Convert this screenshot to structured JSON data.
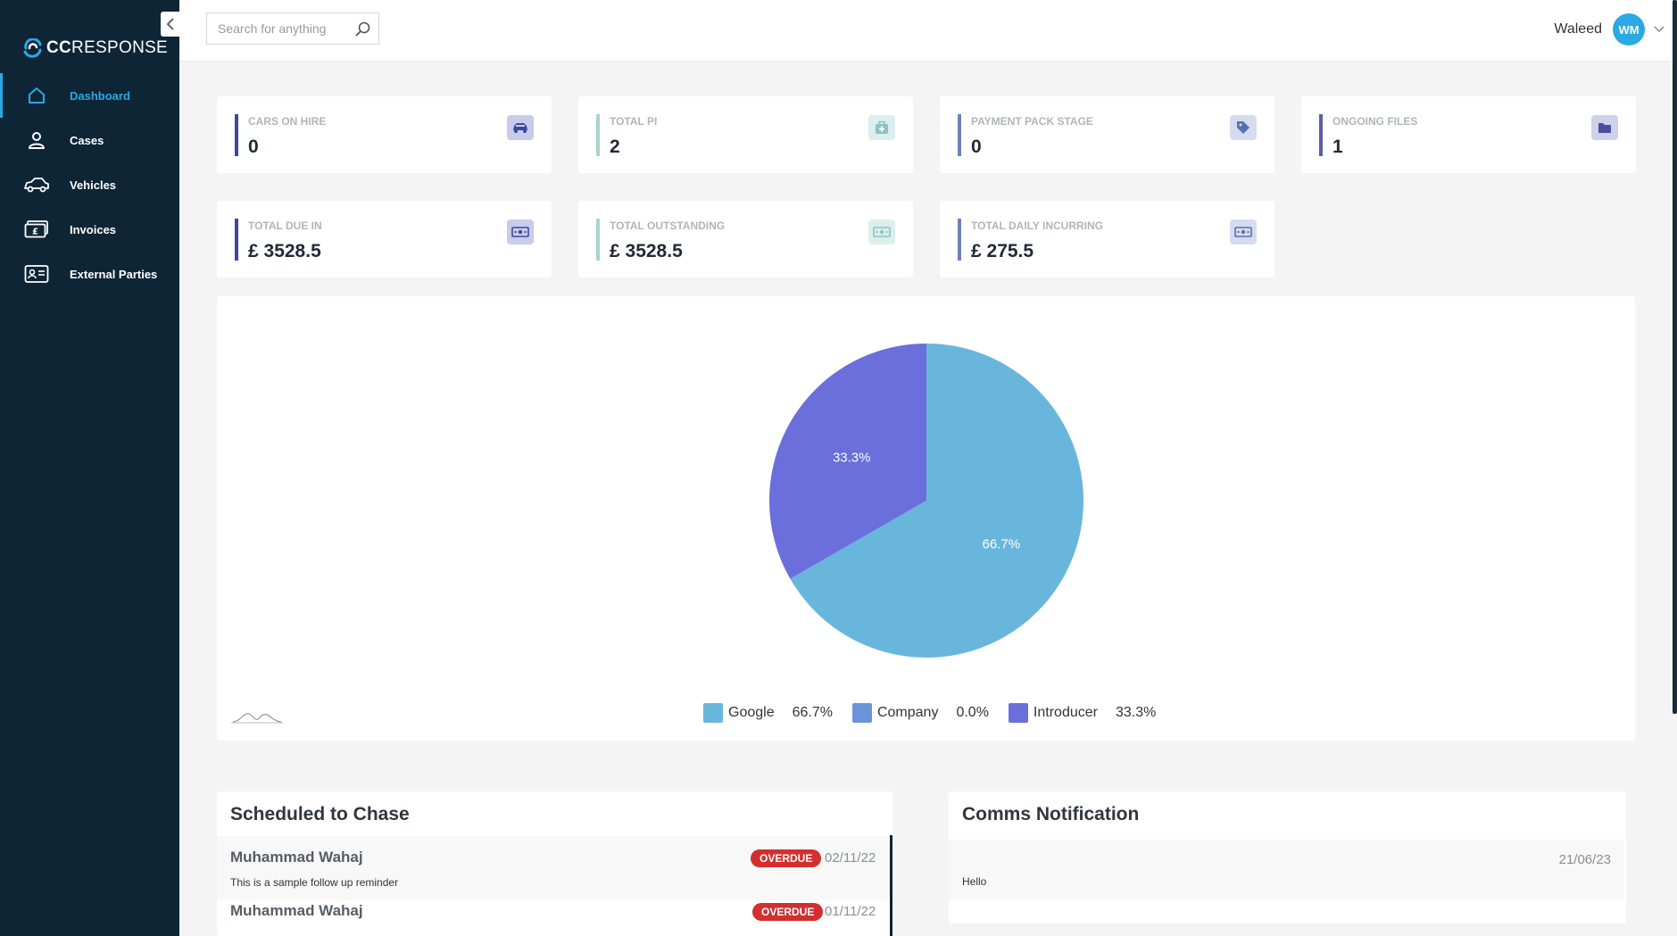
{
  "app": {
    "logo_bold": "CC",
    "logo_rest": "RESPONSE"
  },
  "sidebar": {
    "items": [
      {
        "label": "Dashboard",
        "icon": "home-icon",
        "active": true
      },
      {
        "label": "Cases",
        "icon": "user-icon"
      },
      {
        "label": "Vehicles",
        "icon": "car-icon"
      },
      {
        "label": "Invoices",
        "icon": "money-icon"
      },
      {
        "label": "External Parties",
        "icon": "id-card-icon"
      }
    ]
  },
  "topbar": {
    "search_placeholder": "Search for anything",
    "user_name": "Waleed",
    "avatar_initials": "WM"
  },
  "stats": [
    {
      "label": "CARS ON HIRE",
      "value": "0",
      "accent": "#3b4a9a",
      "icon": "car-icon"
    },
    {
      "label": "TOTAL PI",
      "value": "2",
      "accent": "#a8d3d1",
      "icon": "medkit-icon"
    },
    {
      "label": "PAYMENT PACK STAGE",
      "value": "0",
      "accent": "#6d82b8",
      "icon": "tag-icon"
    },
    {
      "label": "ONGOING FILES",
      "value": "1",
      "accent": "#5c5ea8",
      "icon": "folder-icon"
    },
    {
      "label": "TOTAL DUE IN",
      "value": "£ 3528.5",
      "accent": "#3b4a9a",
      "icon": "money-icon"
    },
    {
      "label": "TOTAL OUTSTANDING",
      "value": "£ 3528.5",
      "accent": "#a8d3d1",
      "icon": "money-icon"
    },
    {
      "label": "TOTAL DAILY INCURRING",
      "value": "£ 275.5",
      "accent": "#6d82b8",
      "icon": "money-icon"
    }
  ],
  "chart_data": {
    "type": "pie",
    "categories": [
      "Google",
      "Company",
      "Introducer"
    ],
    "values": [
      66.7,
      0.0,
      33.3
    ],
    "labels": [
      "66.7%",
      "0.0%",
      "33.3%"
    ],
    "colors": [
      "#69b6dc",
      "#6a93dc",
      "#6b6fdb"
    ],
    "title": "",
    "legend": "bottom"
  },
  "chase": {
    "title": "Scheduled to Chase",
    "items": [
      {
        "name": "Muhammad Wahaj",
        "status": "OVERDUE",
        "date": "02/11/22",
        "note": "This is a sample follow up reminder"
      },
      {
        "name": "Muhammad Wahaj",
        "status": "OVERDUE",
        "date": "01/11/22",
        "note": ""
      }
    ]
  },
  "comms": {
    "title": "Comms Notification",
    "items": [
      {
        "date": "21/06/23",
        "text": "Hello"
      }
    ]
  }
}
